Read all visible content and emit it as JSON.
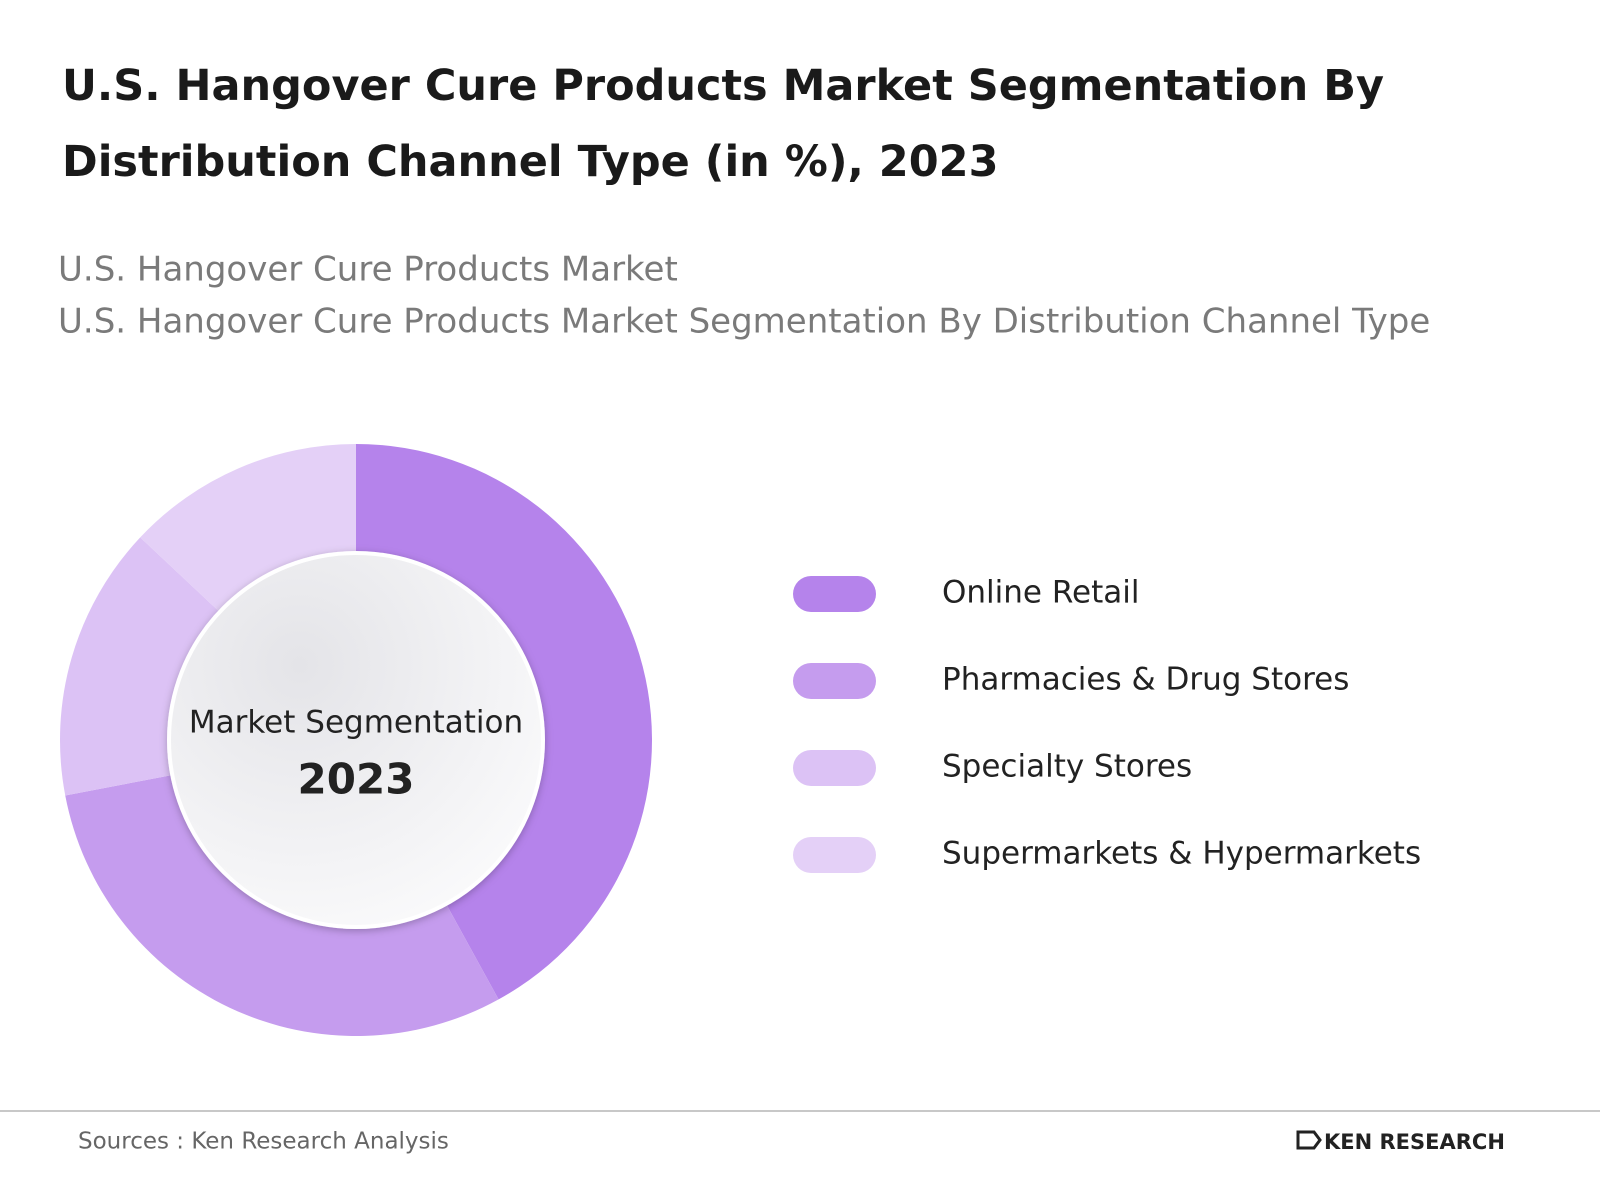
{
  "chart_data": {
    "type": "donut",
    "title": "U.S. Hangover Cure Products Market Segmentation By Distribution Channel Type (in %), 2023",
    "subtitles": [
      "U.S. Hangover Cure Products Market",
      "U.S. Hangover Cure Products Market Segmentation By Distribution Channel Type"
    ],
    "center_label": "Market Segmentation",
    "center_year": "2023",
    "categories": [
      "Online Retail",
      "Pharmacies & Drug Stores",
      "Specialty Stores",
      "Supermarkets & Hypermarkets"
    ],
    "values": [
      42,
      30,
      15,
      13
    ],
    "colors": [
      "#b583eb",
      "#c59cee",
      "#dcc2f5",
      "#e4d0f7"
    ]
  },
  "footer": {
    "source": "Sources : Ken Research Analysis",
    "logo": "KEN RESEARCH"
  }
}
